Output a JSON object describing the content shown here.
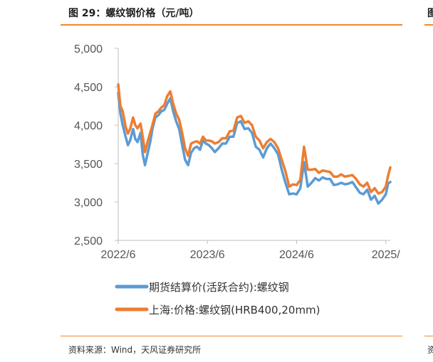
{
  "header": {
    "figure_title": "图 29：螺纹钢价格（元/吨）",
    "next_figure_title_fragment": "图",
    "source": "资料来源：Wind，天风证券研究所",
    "next_source_fragment": "资"
  },
  "colors": {
    "accent_rule": "#f08a2a",
    "series_1": "#5b9bd5",
    "series_2": "#ed7d31",
    "axis": "#bfbfbf"
  },
  "chart_data": {
    "type": "line",
    "title": "",
    "xlabel": "",
    "ylabel": "",
    "ylim": [
      2500,
      5000
    ],
    "yticks": [
      "5,000",
      "4,500",
      "4,000",
      "3,500",
      "3,000",
      "2,500"
    ],
    "ytick_values": [
      5000,
      4500,
      4000,
      3500,
      3000,
      2500
    ],
    "xticks": [
      "2022/6",
      "2023/6",
      "2024/6",
      "2025/"
    ],
    "xtick_values": [
      0,
      12,
      24,
      36
    ],
    "x_unit": "months since 2022/6",
    "legend_position": "bottom",
    "grid": false,
    "series": [
      {
        "name": "期货结算价(活跃合约):螺纹钢",
        "x": [
          0,
          0.3,
          0.6,
          1,
          1.3,
          1.6,
          2,
          2.3,
          2.6,
          3,
          3.3,
          3.6,
          4,
          4.3,
          4.6,
          5,
          5.4,
          5.8,
          6.2,
          6.6,
          7,
          7.4,
          7.8,
          8.2,
          8.6,
          9,
          9.4,
          9.8,
          10.2,
          10.6,
          11,
          11.4,
          11.8,
          12.2,
          12.6,
          13,
          13.5,
          14,
          14.5,
          15,
          15.5,
          16,
          16.5,
          17,
          17.5,
          18,
          18.5,
          19,
          19.5,
          20,
          20.5,
          21,
          21.5,
          22,
          22.5,
          23,
          23.5,
          24,
          24.5,
          25,
          25.5,
          26,
          26.5,
          27,
          27.5,
          28,
          28.5,
          29,
          29.5,
          30,
          30.5,
          31,
          31.5,
          32,
          32.5,
          33,
          33.5,
          34,
          34.5,
          35,
          35.5,
          36,
          36.3,
          36.6
        ],
        "values": [
          4420,
          4150,
          4000,
          3850,
          3740,
          3800,
          3950,
          3820,
          3780,
          3900,
          3620,
          3480,
          3650,
          3780,
          3950,
          4100,
          4130,
          4180,
          4200,
          4280,
          4350,
          4180,
          4050,
          3950,
          3740,
          3550,
          3480,
          3640,
          3700,
          3720,
          3680,
          3800,
          3760,
          3740,
          3700,
          3650,
          3700,
          3760,
          3760,
          3850,
          3850,
          4030,
          4050,
          3950,
          3960,
          3900,
          3720,
          3680,
          3580,
          3700,
          3760,
          3700,
          3620,
          3420,
          3250,
          3100,
          3110,
          3100,
          3180,
          3520,
          3200,
          3250,
          3310,
          3280,
          3320,
          3300,
          3300,
          3220,
          3230,
          3250,
          3230,
          3240,
          3260,
          3190,
          3120,
          3100,
          3160,
          3030,
          3080,
          2980,
          3030,
          3100,
          3240,
          3260
        ]
      },
      {
        "name": "上海:价格:螺纹钢(HRB400,20mm)",
        "x": [
          0,
          0.3,
          0.6,
          1,
          1.3,
          1.6,
          2,
          2.3,
          2.6,
          3,
          3.3,
          3.6,
          4,
          4.3,
          4.6,
          5,
          5.4,
          5.8,
          6.2,
          6.6,
          7,
          7.4,
          7.8,
          8.2,
          8.6,
          9,
          9.4,
          9.8,
          10.2,
          10.6,
          11,
          11.4,
          11.8,
          12.2,
          12.6,
          13,
          13.5,
          14,
          14.5,
          15,
          15.5,
          16,
          16.5,
          17,
          17.5,
          18,
          18.5,
          19,
          19.5,
          20,
          20.5,
          21,
          21.5,
          22,
          22.5,
          23,
          23.5,
          24,
          24.5,
          25,
          25.5,
          26,
          26.5,
          27,
          27.5,
          28,
          28.5,
          29,
          29.5,
          30,
          30.5,
          31,
          31.5,
          32,
          32.5,
          33,
          33.5,
          34,
          34.5,
          35,
          35.5,
          36,
          36.3,
          36.6
        ],
        "values": [
          4530,
          4250,
          4180,
          3980,
          3890,
          3950,
          4100,
          4000,
          3960,
          4020,
          3850,
          3650,
          3800,
          3900,
          4000,
          4150,
          4180,
          4230,
          4260,
          4380,
          4440,
          4280,
          4150,
          4070,
          3900,
          3700,
          3600,
          3760,
          3780,
          3790,
          3760,
          3850,
          3800,
          3800,
          3790,
          3760,
          3780,
          3830,
          3830,
          3920,
          3930,
          4100,
          4120,
          4030,
          4050,
          4000,
          3850,
          3800,
          3700,
          3780,
          3820,
          3780,
          3700,
          3550,
          3400,
          3200,
          3230,
          3220,
          3290,
          3720,
          3420,
          3420,
          3430,
          3380,
          3410,
          3400,
          3390,
          3330,
          3330,
          3360,
          3330,
          3340,
          3350,
          3300,
          3230,
          3200,
          3250,
          3130,
          3180,
          3110,
          3130,
          3200,
          3340,
          3450
        ]
      }
    ]
  }
}
